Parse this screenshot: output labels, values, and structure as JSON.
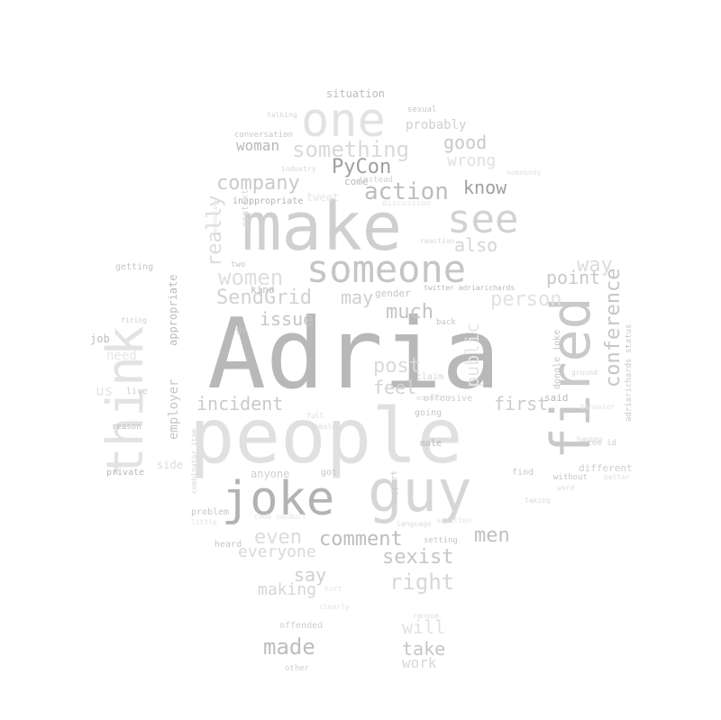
{
  "cloud": {
    "words": [
      {
        "text": "Adria"
      },
      {
        "text": "people"
      },
      {
        "text": "make"
      },
      {
        "text": "joke"
      },
      {
        "text": "guy"
      },
      {
        "text": "fired"
      },
      {
        "text": "think"
      },
      {
        "text": "someone"
      },
      {
        "text": "one"
      },
      {
        "text": "see"
      },
      {
        "text": "something"
      },
      {
        "text": "action"
      },
      {
        "text": "company"
      },
      {
        "text": "PyCon"
      },
      {
        "text": "good"
      },
      {
        "text": "wrong"
      },
      {
        "text": "know"
      },
      {
        "text": "women"
      },
      {
        "text": "SendGrid"
      },
      {
        "text": "may"
      },
      {
        "text": "person"
      },
      {
        "text": "conference"
      },
      {
        "text": "way"
      },
      {
        "text": "point"
      },
      {
        "text": "also"
      },
      {
        "text": "really"
      },
      {
        "text": "much"
      },
      {
        "text": "issue"
      },
      {
        "text": "post"
      },
      {
        "text": "public"
      },
      {
        "text": "incident"
      },
      {
        "text": "feel"
      },
      {
        "text": "first"
      },
      {
        "text": "comment"
      },
      {
        "text": "even"
      },
      {
        "text": "men"
      },
      {
        "text": "sexist"
      },
      {
        "text": "right"
      },
      {
        "text": "everyone"
      },
      {
        "text": "say"
      },
      {
        "text": "making"
      },
      {
        "text": "made"
      },
      {
        "text": "take"
      },
      {
        "text": "will"
      },
      {
        "text": "work"
      },
      {
        "text": "woman"
      },
      {
        "text": "situation"
      },
      {
        "text": "probably"
      },
      {
        "text": "tweet"
      },
      {
        "text": "come"
      },
      {
        "text": "inappropriate"
      },
      {
        "text": "employer"
      },
      {
        "text": "appropriate"
      },
      {
        "text": "need"
      },
      {
        "text": "us"
      },
      {
        "text": "job"
      },
      {
        "text": "kind"
      },
      {
        "text": "gender"
      },
      {
        "text": "twitter adriarichards"
      },
      {
        "text": "dongle joke"
      },
      {
        "text": "adriarichards status"
      },
      {
        "text": "said"
      },
      {
        "text": "offensive"
      },
      {
        "text": "claim"
      },
      {
        "text": "going"
      },
      {
        "text": "male"
      },
      {
        "text": "anyone"
      },
      {
        "text": "got"
      },
      {
        "text": "support"
      },
      {
        "text": "find"
      },
      {
        "text": "different"
      },
      {
        "text": "without"
      },
      {
        "text": "side"
      },
      {
        "text": "private"
      },
      {
        "text": "reason"
      },
      {
        "text": "problem"
      },
      {
        "text": "heard"
      },
      {
        "text": "offended"
      },
      {
        "text": "other"
      },
      {
        "text": "getting"
      },
      {
        "text": "conversation"
      },
      {
        "text": "context"
      },
      {
        "text": "sexual"
      },
      {
        "text": "instead"
      },
      {
        "text": "discussion"
      },
      {
        "text": "two"
      },
      {
        "text": "live"
      },
      {
        "text": "go"
      },
      {
        "text": "back"
      },
      {
        "text": "setting"
      },
      {
        "text": "language"
      },
      {
        "text": "item id"
      },
      {
        "text": "equality"
      },
      {
        "text": "reaction"
      },
      {
        "text": "firing"
      },
      {
        "text": "talking"
      },
      {
        "text": "industry"
      },
      {
        "text": "technology"
      },
      {
        "text": "somebody"
      },
      {
        "text": "behavior"
      },
      {
        "text": "better"
      },
      {
        "text": "happen"
      },
      {
        "text": "word"
      },
      {
        "text": "taking"
      },
      {
        "text": "ground"
      },
      {
        "text": "female"
      },
      {
        "text": "full"
      },
      {
        "text": "random"
      },
      {
        "text": "code conduct"
      },
      {
        "text": "hurt"
      },
      {
        "text": "clearly"
      },
      {
        "text": "addition"
      },
      {
        "text": "little"
      },
      {
        "text": "combinator item"
      }
    ]
  }
}
